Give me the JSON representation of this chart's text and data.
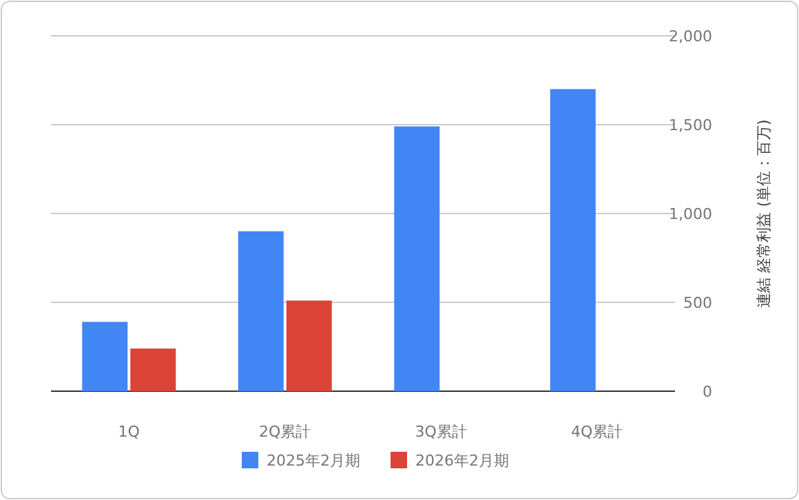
{
  "chart_data": {
    "type": "bar",
    "ylabel": "連結 経常利益 (単位：百万)",
    "categories": [
      "1Q",
      "2Q累計",
      "3Q累計",
      "4Q累計"
    ],
    "series": [
      {
        "name": "2025年2月期",
        "color": "#4285f4",
        "values": [
          390,
          900,
          1490,
          1700
        ]
      },
      {
        "name": "2026年2月期",
        "color": "#db4437",
        "values": [
          240,
          510,
          null,
          null
        ]
      }
    ],
    "ylim": [
      0,
      2000
    ],
    "yticks": [
      {
        "value": 0,
        "label": "0"
      },
      {
        "value": 500,
        "label": "500"
      },
      {
        "value": 1000,
        "label": "1,000"
      },
      {
        "value": 1500,
        "label": "1,500"
      },
      {
        "value": 2000,
        "label": "2,000"
      }
    ],
    "grid": "y",
    "legend": "bottom"
  }
}
